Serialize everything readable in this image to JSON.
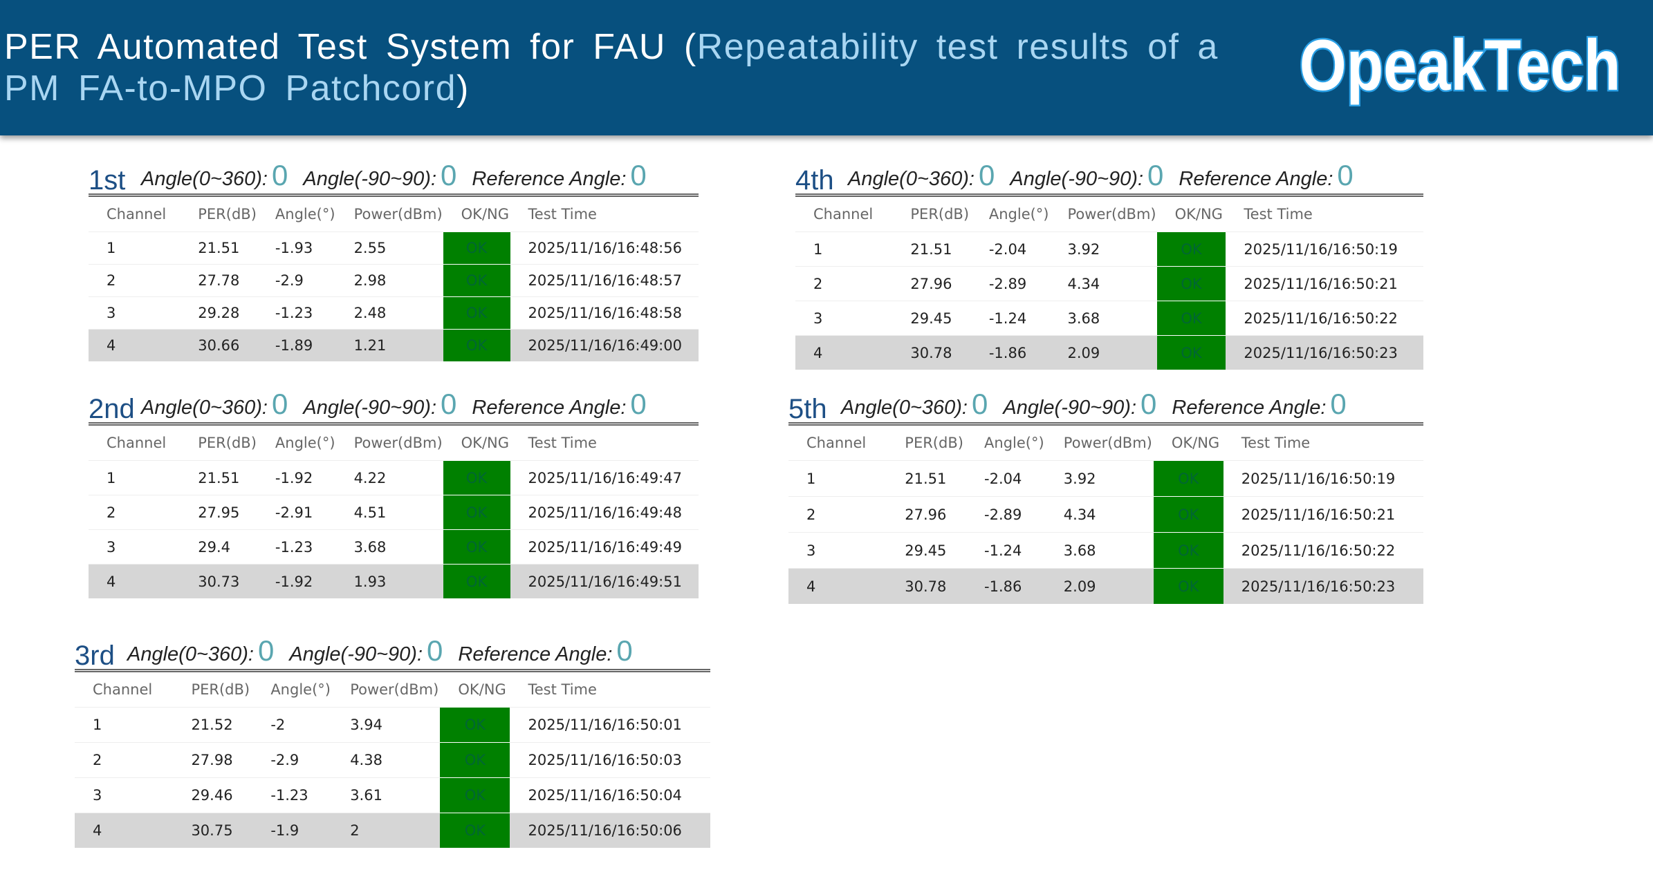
{
  "header": {
    "title_main": "PER Automated Test System for FAU (",
    "title_highlight": "Repeatability test results of  a PM FA-to-MPO Patchcord",
    "title_end": ")",
    "logo": "OpeakTech"
  },
  "panels": [
    {
      "label": "1st",
      "angles": [
        {
          "label": "Angle(0~360):",
          "value": "0"
        },
        {
          "label": "Angle(-90~90):",
          "value": "0"
        },
        {
          "label": "Reference Angle:",
          "value": "0"
        }
      ],
      "columns": [
        "Channel",
        "PER(dB)",
        "Angle(°)",
        "Power(dBm)",
        "OK/NG",
        "Test Time"
      ],
      "rows": [
        [
          "1",
          "21.51",
          "-1.93",
          "2.55",
          "OK",
          "2025/11/16/16:48:56"
        ],
        [
          "2",
          "27.78",
          "-2.9",
          "2.98",
          "OK",
          "2025/11/16/16:48:57"
        ],
        [
          "3",
          "29.28",
          "-1.23",
          "2.48",
          "OK",
          "2025/11/16/16:48:58"
        ],
        [
          "4",
          "30.66",
          "-1.89",
          "1.21",
          "OK",
          "2025/11/16/16:49:00"
        ]
      ]
    },
    {
      "label": "2nd",
      "angles": [
        {
          "label": "Angle(0~360):",
          "value": "0"
        },
        {
          "label": "Angle(-90~90):",
          "value": "0"
        },
        {
          "label": "Reference Angle:",
          "value": "0"
        }
      ],
      "columns": [
        "Channel",
        "PER(dB)",
        "Angle(°)",
        "Power(dBm)",
        "OK/NG",
        "Test Time"
      ],
      "rows": [
        [
          "1",
          "21.51",
          "-1.92",
          "4.22",
          "OK",
          "2025/11/16/16:49:47"
        ],
        [
          "2",
          "27.95",
          "-2.91",
          "4.51",
          "OK",
          "2025/11/16/16:49:48"
        ],
        [
          "3",
          "29.4",
          "-1.23",
          "3.68",
          "OK",
          "2025/11/16/16:49:49"
        ],
        [
          "4",
          "30.73",
          "-1.92",
          "1.93",
          "OK",
          "2025/11/16/16:49:51"
        ]
      ]
    },
    {
      "label": "3rd",
      "angles": [
        {
          "label": "Angle(0~360):",
          "value": "0"
        },
        {
          "label": "Angle(-90~90):",
          "value": "0"
        },
        {
          "label": "Reference Angle:",
          "value": "0"
        }
      ],
      "columns": [
        "Channel",
        "PER(dB)",
        "Angle(°)",
        "Power(dBm)",
        "OK/NG",
        "Test Time"
      ],
      "rows": [
        [
          "1",
          "21.52",
          "-2",
          "3.94",
          "OK",
          "2025/11/16/16:50:01"
        ],
        [
          "2",
          "27.98",
          "-2.9",
          "4.38",
          "OK",
          "2025/11/16/16:50:03"
        ],
        [
          "3",
          "29.46",
          "-1.23",
          "3.61",
          "OK",
          "2025/11/16/16:50:04"
        ],
        [
          "4",
          "30.75",
          "-1.9",
          "2",
          "OK",
          "2025/11/16/16:50:06"
        ]
      ]
    },
    {
      "label": "4th",
      "angles": [
        {
          "label": "Angle(0~360):",
          "value": "0"
        },
        {
          "label": "Angle(-90~90):",
          "value": "0"
        },
        {
          "label": "Reference Angle:",
          "value": "0"
        }
      ],
      "columns": [
        "Channel",
        "PER(dB)",
        "Angle(°)",
        "Power(dBm)",
        "OK/NG",
        "Test Time"
      ],
      "rows": [
        [
          "1",
          "21.51",
          "-2.04",
          "3.92",
          "OK",
          "2025/11/16/16:50:19"
        ],
        [
          "2",
          "27.96",
          "-2.89",
          "4.34",
          "OK",
          "2025/11/16/16:50:21"
        ],
        [
          "3",
          "29.45",
          "-1.24",
          "3.68",
          "OK",
          "2025/11/16/16:50:22"
        ],
        [
          "4",
          "30.78",
          "-1.86",
          "2.09",
          "OK",
          "2025/11/16/16:50:23"
        ]
      ]
    },
    {
      "label": "5th",
      "angles": [
        {
          "label": "Angle(0~360):",
          "value": "0"
        },
        {
          "label": "Angle(-90~90):",
          "value": "0"
        },
        {
          "label": "Reference Angle:",
          "value": "0"
        }
      ],
      "columns": [
        "Channel",
        "PER(dB)",
        "Angle(°)",
        "Power(dBm)",
        "OK/NG",
        "Test Time"
      ],
      "rows": [
        [
          "1",
          "21.51",
          "-2.04",
          "3.92",
          "OK",
          "2025/11/16/16:50:19"
        ],
        [
          "2",
          "27.96",
          "-2.89",
          "4.34",
          "OK",
          "2025/11/16/16:50:21"
        ],
        [
          "3",
          "29.45",
          "-1.24",
          "3.68",
          "OK",
          "2025/11/16/16:50:22"
        ],
        [
          "4",
          "30.78",
          "-1.86",
          "2.09",
          "OK",
          "2025/11/16/16:50:23"
        ]
      ]
    }
  ]
}
